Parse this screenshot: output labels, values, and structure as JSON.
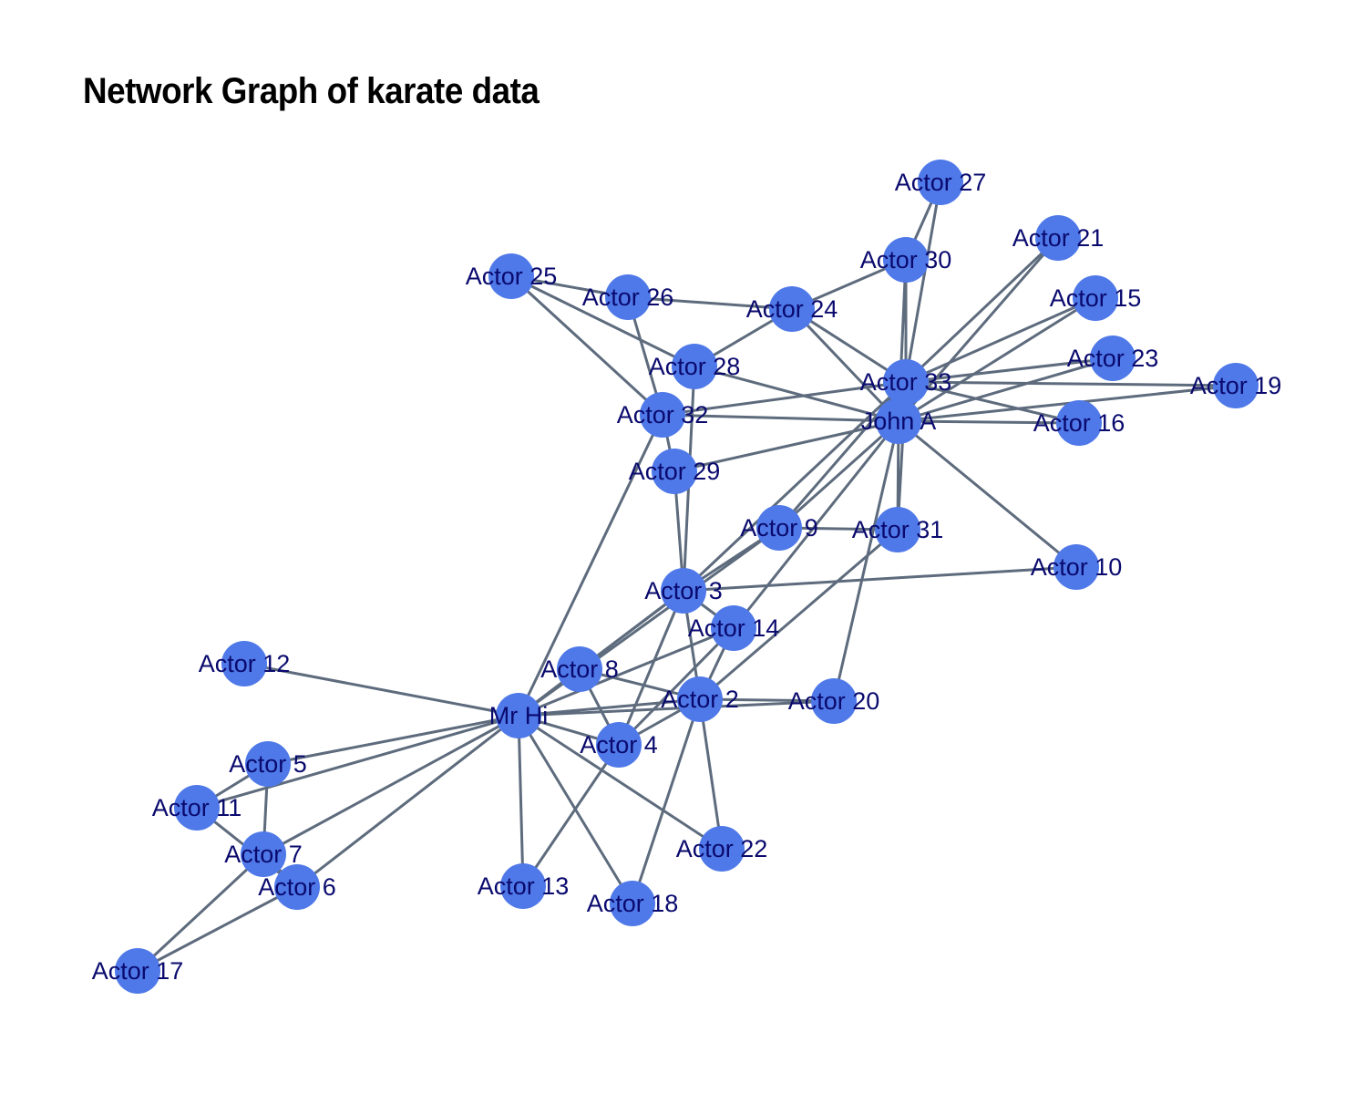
{
  "title": "Network Graph of karate data",
  "colors": {
    "node_fill": "#4f79e8",
    "edge": "#5d6b7d",
    "label": "#0a0a6e"
  },
  "nodes": [
    {
      "id": 1,
      "label": "Mr Hi"
    },
    {
      "id": 2,
      "label": "Actor 2"
    },
    {
      "id": 3,
      "label": "Actor 3"
    },
    {
      "id": 4,
      "label": "Actor 4"
    },
    {
      "id": 5,
      "label": "Actor 5"
    },
    {
      "id": 6,
      "label": "Actor 6"
    },
    {
      "id": 7,
      "label": "Actor 7"
    },
    {
      "id": 8,
      "label": "Actor 8"
    },
    {
      "id": 9,
      "label": "Actor 9"
    },
    {
      "id": 10,
      "label": "Actor 10"
    },
    {
      "id": 11,
      "label": "Actor 11"
    },
    {
      "id": 12,
      "label": "Actor 12"
    },
    {
      "id": 13,
      "label": "Actor 13"
    },
    {
      "id": 14,
      "label": "Actor 14"
    },
    {
      "id": 15,
      "label": "Actor 15"
    },
    {
      "id": 16,
      "label": "Actor 16"
    },
    {
      "id": 17,
      "label": "Actor 17"
    },
    {
      "id": 18,
      "label": "Actor 18"
    },
    {
      "id": 19,
      "label": "Actor 19"
    },
    {
      "id": 20,
      "label": "Actor 20"
    },
    {
      "id": 21,
      "label": "Actor 21"
    },
    {
      "id": 22,
      "label": "Actor 22"
    },
    {
      "id": 23,
      "label": "Actor 23"
    },
    {
      "id": 24,
      "label": "Actor 24"
    },
    {
      "id": 25,
      "label": "Actor 25"
    },
    {
      "id": 26,
      "label": "Actor 26"
    },
    {
      "id": 27,
      "label": "Actor 27"
    },
    {
      "id": 28,
      "label": "Actor 28"
    },
    {
      "id": 29,
      "label": "Actor 29"
    },
    {
      "id": 30,
      "label": "Actor 30"
    },
    {
      "id": 31,
      "label": "Actor 31"
    },
    {
      "id": 32,
      "label": "Actor 32"
    },
    {
      "id": 33,
      "label": "Actor 33"
    },
    {
      "id": 34,
      "label": "John A"
    }
  ],
  "edges": [
    [
      1,
      2
    ],
    [
      1,
      3
    ],
    [
      1,
      4
    ],
    [
      1,
      5
    ],
    [
      1,
      6
    ],
    [
      1,
      7
    ],
    [
      1,
      8
    ],
    [
      1,
      9
    ],
    [
      1,
      11
    ],
    [
      1,
      12
    ],
    [
      1,
      13
    ],
    [
      1,
      14
    ],
    [
      1,
      18
    ],
    [
      1,
      20
    ],
    [
      1,
      22
    ],
    [
      1,
      32
    ],
    [
      2,
      3
    ],
    [
      2,
      4
    ],
    [
      2,
      8
    ],
    [
      2,
      14
    ],
    [
      2,
      18
    ],
    [
      2,
      20
    ],
    [
      2,
      22
    ],
    [
      2,
      31
    ],
    [
      3,
      4
    ],
    [
      3,
      8
    ],
    [
      3,
      9
    ],
    [
      3,
      10
    ],
    [
      3,
      14
    ],
    [
      3,
      28
    ],
    [
      3,
      29
    ],
    [
      3,
      33
    ],
    [
      4,
      8
    ],
    [
      4,
      13
    ],
    [
      4,
      14
    ],
    [
      5,
      7
    ],
    [
      5,
      11
    ],
    [
      6,
      7
    ],
    [
      6,
      11
    ],
    [
      6,
      17
    ],
    [
      7,
      17
    ],
    [
      9,
      31
    ],
    [
      9,
      33
    ],
    [
      9,
      34
    ],
    [
      10,
      34
    ],
    [
      14,
      34
    ],
    [
      15,
      33
    ],
    [
      15,
      34
    ],
    [
      16,
      33
    ],
    [
      16,
      34
    ],
    [
      19,
      33
    ],
    [
      19,
      34
    ],
    [
      20,
      34
    ],
    [
      21,
      33
    ],
    [
      21,
      34
    ],
    [
      23,
      33
    ],
    [
      23,
      34
    ],
    [
      24,
      26
    ],
    [
      24,
      28
    ],
    [
      24,
      30
    ],
    [
      24,
      33
    ],
    [
      24,
      34
    ],
    [
      25,
      26
    ],
    [
      25,
      28
    ],
    [
      25,
      32
    ],
    [
      26,
      32
    ],
    [
      27,
      30
    ],
    [
      27,
      34
    ],
    [
      28,
      34
    ],
    [
      29,
      32
    ],
    [
      29,
      34
    ],
    [
      30,
      33
    ],
    [
      30,
      34
    ],
    [
      31,
      33
    ],
    [
      31,
      34
    ],
    [
      32,
      33
    ],
    [
      32,
      34
    ],
    [
      33,
      34
    ]
  ]
}
